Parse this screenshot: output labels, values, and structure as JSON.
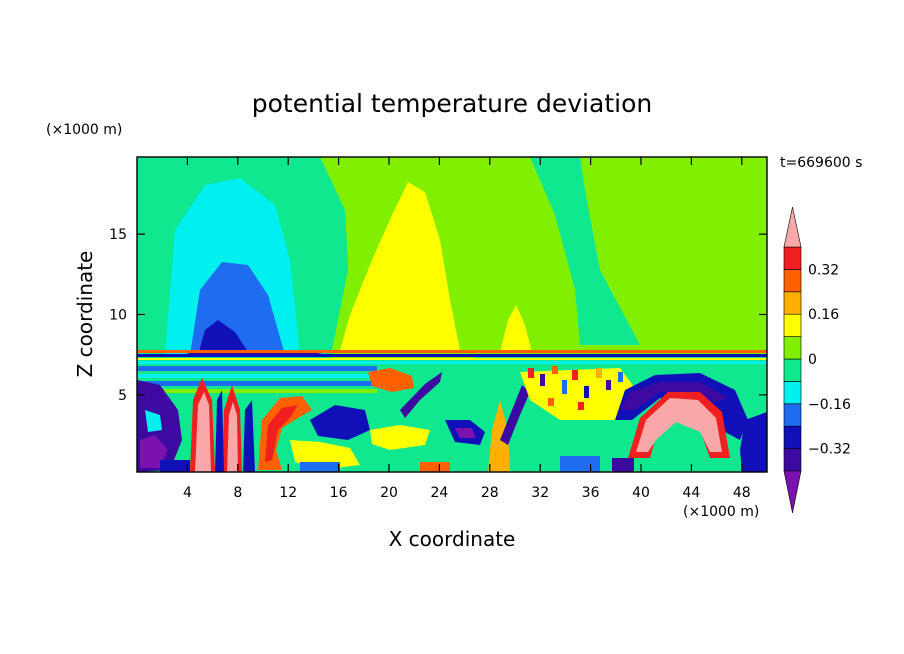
{
  "chart_data": {
    "type": "heatmap",
    "title": "potential temperature deviation",
    "xlabel": "X coordinate",
    "ylabel": "Z coordinate",
    "x_unit": "(×1000 m)",
    "y_unit": "(×1000 m)",
    "time_label": "t=669600 s",
    "xlim": [
      0,
      50
    ],
    "ylim": [
      0.2,
      19.8
    ],
    "x_ticks": [
      4,
      8,
      12,
      16,
      20,
      24,
      28,
      32,
      36,
      40,
      44,
      48
    ],
    "y_ticks": [
      5,
      10,
      15
    ],
    "colorbar": {
      "levels": [
        -0.4,
        -0.32,
        -0.24,
        -0.16,
        -0.08,
        0,
        0.08,
        0.16,
        0.24,
        0.32,
        0.4
      ],
      "labeled_levels": [
        0.32,
        0.16,
        0,
        -0.16,
        -0.32
      ],
      "colors": [
        "#7b12b0",
        "#3c0aa0",
        "#1010b8",
        "#1e6cf0",
        "#00f0f0",
        "#10e890",
        "#80f000",
        "#ffff00",
        "#ffb000",
        "#ff6000",
        "#f02020",
        "#f8a8a8"
      ],
      "extend": "both"
    },
    "features": [
      {
        "sign": "negative",
        "x_range": [
          3,
          12
        ],
        "z_range": [
          7.5,
          18
        ],
        "peak_x": 7,
        "peak_z": 13.5,
        "level": -0.32
      },
      {
        "sign": "positive",
        "x_range": [
          14,
          24
        ],
        "z_range": [
          7.5,
          18.5
        ],
        "peak_x": 21,
        "peak_z": 17.5,
        "level": 0.16
      },
      {
        "sign": "positive",
        "x_range": [
          39,
          47
        ],
        "z_range": [
          0.5,
          5
        ],
        "peak_x": 43,
        "peak_z": 4.5,
        "level": 0.4
      },
      {
        "sign": "negative",
        "x_range": [
          29,
          31.5
        ],
        "z_range": [
          3.5,
          6.5
        ],
        "peak_x": 30,
        "peak_z": 5,
        "level": -0.32
      },
      {
        "sign": "positive",
        "x_range": [
          5,
          9
        ],
        "z_range": [
          0.5,
          6.5
        ],
        "peak_x": 6,
        "peak_z": 4,
        "level": 0.4
      }
    ]
  }
}
